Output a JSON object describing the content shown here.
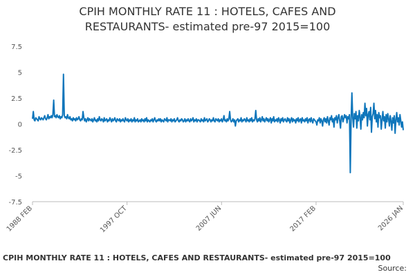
{
  "chart_data": {
    "type": "line",
    "title": [
      "CPIH MONTHLY RATE 11 : HOTELS, CAFES AND",
      "RESTAURANTS- estimated pre-97 2015=100"
    ],
    "caption": "CPIH MONTHLY RATE 11 : HOTELS, CAFES AND RESTAURANTS- estimated pre-97 2015=100",
    "source": "Source:",
    "ylim": [
      -7.5,
      7.5
    ],
    "yticks": [
      7.5,
      5,
      {
        "value": 2.5,
        "label": "2.5"
      },
      0,
      {
        "value": -2.5,
        "label": "-2.5"
      },
      -5,
      {
        "value": -7.5,
        "label": "-7.5"
      }
    ],
    "grid": false,
    "color": "#0f76bb",
    "categories": [
      "1988 FEB",
      null,
      null,
      null,
      null,
      null,
      null,
      null,
      null,
      null,
      null,
      null,
      null,
      null,
      null,
      null,
      null,
      null,
      null,
      null,
      null,
      null,
      null,
      null,
      null,
      null,
      null,
      null,
      null,
      null,
      null,
      null,
      null,
      null,
      null,
      null,
      null,
      null,
      null,
      null,
      null,
      null,
      null,
      null,
      null,
      null,
      null,
      null,
      null,
      null,
      null,
      null,
      null,
      null,
      null,
      null,
      null,
      null,
      null,
      null,
      null,
      null,
      null,
      null,
      null,
      null,
      null,
      null,
      null,
      null,
      null,
      null,
      null,
      null,
      null,
      null,
      null,
      null,
      null,
      null,
      null,
      null,
      null,
      null,
      null,
      null,
      null,
      null,
      null,
      null,
      null,
      null,
      null,
      null,
      null,
      null,
      null,
      null,
      null,
      null,
      null,
      null,
      null,
      null,
      null,
      null,
      null,
      null,
      null,
      null,
      null,
      null,
      null,
      null,
      null,
      null,
      "1997 OCT",
      null,
      null,
      null,
      null,
      null,
      null,
      null,
      null,
      null,
      null,
      null,
      null,
      null,
      null,
      null,
      null,
      null,
      null,
      null,
      null,
      null,
      null,
      null,
      null,
      null,
      null,
      null,
      null,
      null,
      null,
      null,
      null,
      null,
      null,
      null,
      null,
      null,
      null,
      null,
      null,
      null,
      null,
      null,
      null,
      null,
      null,
      null,
      null,
      null,
      null,
      null,
      null,
      null,
      null,
      null,
      null,
      null,
      null,
      null,
      null,
      null,
      null,
      null,
      null,
      null,
      null,
      null,
      null,
      null,
      null,
      null,
      null,
      null,
      null,
      null,
      null,
      null,
      null,
      null,
      null,
      null,
      null,
      null,
      null,
      null,
      null,
      null,
      null,
      null,
      null,
      null,
      null,
      null,
      null,
      null,
      null,
      null,
      null,
      null,
      null,
      null,
      null,
      null,
      null,
      null,
      null,
      null,
      null,
      null,
      null,
      null,
      null,
      null,
      null,
      null,
      "2007 JUN",
      null,
      null,
      null,
      null,
      null,
      null,
      null,
      null,
      null,
      null,
      null,
      null,
      null,
      null,
      null,
      null,
      null,
      null,
      null,
      null,
      null,
      null,
      null,
      null,
      null,
      null,
      null,
      null,
      null,
      null,
      null,
      null,
      null,
      null,
      null,
      null,
      null,
      null,
      null,
      null,
      null,
      null,
      null,
      null,
      null,
      null,
      null,
      null,
      null,
      null,
      null,
      null,
      null,
      null,
      null,
      null,
      null,
      null,
      null,
      null,
      null,
      null,
      null,
      null,
      null,
      null,
      null,
      null,
      null,
      null,
      null,
      null,
      null,
      null,
      null,
      null,
      null,
      null,
      null,
      null,
      null,
      null,
      null,
      null,
      null,
      null,
      null,
      null,
      null,
      null,
      null,
      null,
      null,
      null,
      null,
      null,
      null,
      null,
      null,
      null,
      null,
      null,
      null,
      null,
      null,
      null,
      null,
      null,
      null,
      null,
      null,
      null,
      null,
      null,
      null,
      "2017 FEB",
      null,
      null,
      null,
      null,
      null,
      null,
      null,
      null,
      null,
      null,
      null,
      null,
      null,
      null,
      null,
      null,
      null,
      null,
      null,
      null,
      null,
      null,
      null,
      null,
      null,
      null,
      null,
      null,
      null,
      null,
      null,
      null,
      null,
      null,
      null,
      null,
      null,
      null,
      null,
      null,
      null,
      null,
      null,
      null,
      null,
      null,
      null,
      null,
      null,
      null,
      null,
      null,
      null,
      null,
      null,
      null,
      null,
      null,
      null,
      null,
      null,
      null,
      null,
      null,
      null,
      null,
      null,
      null,
      null,
      null,
      null,
      null,
      null,
      null,
      null,
      null,
      null,
      null,
      null,
      null,
      null,
      null,
      null,
      null,
      null,
      null,
      null,
      null,
      null,
      null,
      null,
      null,
      null,
      null,
      null,
      null,
      null,
      null,
      null,
      null,
      null,
      null,
      null,
      null,
      null,
      null,
      "2026 JAN"
    ],
    "values": [
      0.5,
      1.2,
      0.4,
      0.3,
      0.6,
      0.5,
      0.4,
      0.3,
      0.7,
      0.5,
      0.4,
      0.6,
      0.5,
      0.4,
      0.6,
      0.8,
      0.5,
      0.4,
      0.6,
      0.9,
      0.5,
      0.7,
      0.6,
      0.8,
      0.6,
      0.9,
      2.3,
      0.7,
      0.8,
      0.6,
      0.9,
      0.7,
      0.6,
      0.8,
      0.5,
      0.7,
      0.6,
      0.9,
      4.8,
      0.8,
      0.6,
      0.7,
      0.5,
      0.9,
      0.6,
      0.5,
      0.7,
      0.4,
      0.5,
      0.3,
      0.6,
      0.4,
      0.5,
      0.3,
      0.6,
      0.4,
      0.5,
      0.7,
      0.4,
      0.3,
      0.5,
      0.4,
      1.2,
      0.6,
      0.3,
      0.5,
      0.2,
      0.4,
      0.6,
      0.3,
      0.5,
      0.4,
      0.3,
      0.5,
      0.2,
      0.4,
      0.6,
      0.3,
      0.4,
      0.2,
      0.5,
      0.3,
      0.7,
      0.4,
      0.3,
      0.5,
      0.4,
      0.2,
      0.6,
      0.3,
      0.4,
      0.5,
      0.2,
      0.4,
      0.3,
      0.6,
      0.4,
      0.2,
      0.5,
      0.3,
      0.4,
      0.6,
      0.3,
      0.2,
      0.5,
      0.4,
      0.3,
      0.5,
      0.2,
      0.4,
      0.3,
      0.5,
      0.3,
      0.2,
      0.6,
      0.4,
      0.3,
      0.5,
      0.2,
      0.4,
      0.3,
      0.5,
      0.2,
      0.4,
      0.3,
      0.6,
      0.2,
      0.4,
      0.3,
      0.5,
      0.2,
      0.3,
      0.4,
      0.2,
      0.5,
      0.3,
      0.4,
      0.2,
      0.5,
      0.3,
      0.6,
      0.2,
      0.4,
      0.3,
      0.2,
      0.4,
      0.3,
      0.5,
      0.2,
      0.4,
      0.6,
      0.3,
      0.2,
      0.4,
      0.3,
      0.5,
      0.3,
      0.5,
      0.2,
      0.4,
      0.3,
      0.2,
      0.5,
      0.4,
      0.3,
      0.6,
      0.2,
      0.4,
      0.4,
      0.3,
      0.5,
      0.2,
      0.4,
      0.3,
      0.5,
      0.2,
      0.3,
      0.4,
      0.6,
      0.3,
      0.2,
      0.4,
      0.3,
      0.5,
      0.4,
      0.2,
      0.3,
      0.5,
      0.2,
      0.4,
      0.3,
      0.5,
      0.3,
      0.2,
      0.5,
      0.3,
      0.4,
      0.6,
      0.2,
      0.4,
      0.3,
      0.5,
      0.2,
      0.4,
      0.4,
      0.3,
      0.2,
      0.5,
      0.3,
      0.4,
      0.2,
      0.6,
      0.3,
      0.4,
      0.5,
      0.2,
      0.3,
      0.5,
      0.4,
      0.2,
      0.4,
      0.3,
      0.6,
      0.3,
      0.2,
      0.5,
      0.4,
      0.3,
      0.5,
      0.2,
      0.4,
      0.3,
      0.5,
      0.2,
      0.4,
      0.8,
      0.3,
      0.4,
      0.2,
      0.5,
      0.3,
      0.5,
      1.2,
      0.4,
      0.2,
      0.3,
      0.5,
      0.2,
      0.4,
      -0.2,
      0.3,
      0.4,
      0.5,
      0.2,
      0.4,
      0.3,
      0.6,
      0.2,
      0.4,
      0.3,
      0.5,
      0.4,
      0.2,
      0.6,
      0.3,
      0.4,
      0.2,
      0.5,
      0.3,
      0.6,
      0.2,
      0.4,
      0.3,
      0.5,
      1.3,
      0.4,
      0.2,
      0.5,
      0.3,
      0.6,
      0.2,
      0.4,
      0.7,
      0.3,
      0.5,
      0.2,
      0.4,
      0.6,
      0.3,
      0.5,
      0.2,
      0.4,
      0.6,
      0.1,
      0.5,
      0.3,
      0.7,
      0.2,
      0.4,
      0.3,
      0.5,
      0.2,
      0.6,
      0.4,
      0.1,
      0.5,
      0.3,
      0.6,
      0.2,
      0.4,
      0.5,
      0.3,
      0.2,
      0.6,
      0.3,
      0.5,
      0.1,
      0.4,
      0.6,
      0.2,
      0.5,
      0.3,
      0.4,
      0.1,
      0.5,
      0.3,
      0.6,
      0.2,
      0.4,
      0.5,
      0.1,
      0.6,
      0.3,
      0.4,
      0.2,
      0.5,
      0.3,
      0.6,
      0.1,
      0.4,
      0.5,
      0.2,
      0.6,
      0.3,
      0.1,
      0.5,
      0.4,
      0.3,
      0.2,
      -0.1,
      0.4,
      0.3,
      0.6,
      0.1,
      0.5,
      0.3,
      -0.2,
      0.4,
      0.6,
      0.2,
      0.5,
      0.1,
      0.7,
      0.3,
      -0.1,
      0.6,
      0.4,
      0.8,
      0.2,
      0.5,
      -0.3,
      0.6,
      0.4,
      0.8,
      0.1,
      0.6,
      0.9,
      0.3,
      -0.4,
      0.7,
      0.8,
      0.2,
      0.5,
      0.9,
      0.6,
      0.8,
      0.1,
      0.7,
      0.5,
      0.9,
      -4.7,
      0.4,
      3.0,
      0.6,
      -0.3,
      1.0,
      0.5,
      1.2,
      -0.4,
      0.8,
      0.3,
      1.3,
      0.7,
      -0.5,
      0.9,
      0.4,
      1.1,
      0.6,
      2.0,
      0.8,
      1.5,
      -0.2,
      0.9,
      1.2,
      0.4,
      1.6,
      -0.8,
      0.7,
      1.0,
      2.0,
      0.5,
      1.3,
      0.2,
      0.9,
      -0.3,
      1.1,
      0.6,
      0.8,
      -0.5,
      0.4,
      1.2,
      0.3,
      0.7,
      -0.4,
      0.9,
      0.2,
      1.0,
      0.5,
      -0.2,
      0.8,
      0.3,
      -0.6,
      0.6,
      0.1,
      0.8,
      -0.9,
      0.4,
      1.1,
      0.2,
      0.6,
      -0.1,
      0.9,
      0.3,
      -0.3,
      0.2,
      -0.6
    ]
  }
}
